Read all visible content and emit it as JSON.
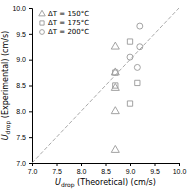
{
  "chart_data": {
    "type": "scatter",
    "title": "",
    "xlabel": "Udrop (Theoretical) (cm/s)",
    "ylabel": "Udrop (Experimental) (cm/s)",
    "xlim": [
      7,
      10
    ],
    "ylim": [
      7,
      10
    ],
    "xticks": [
      {
        "value": 7,
        "label": "7.0"
      },
      7.5,
      {
        "value": 8,
        "label": "8.0"
      },
      8.5,
      {
        "value": 9,
        "label": "9.0"
      },
      9.5,
      {
        "value": 10,
        "label": "10.0"
      }
    ],
    "yticks": [
      {
        "value": 7,
        "label": "7.0"
      },
      7.5,
      {
        "value": 8,
        "label": "8.0"
      },
      8.5,
      {
        "value": 9,
        "label": "9.0"
      },
      9.5,
      {
        "value": 10,
        "label": "10.0"
      }
    ],
    "grid": false,
    "legend": "upper left",
    "series": [
      {
        "type": "line",
        "line_style": "dashed",
        "color": "#aaaaaa",
        "x": [
          7,
          10
        ],
        "values": [
          7,
          10
        ]
      },
      {
        "type": "scatter",
        "name": "ΔT = 150°C",
        "marker": "triangle",
        "color": "#999999",
        "x": [
          8.7,
          8.7,
          8.7,
          8.7,
          8.7
        ],
        "values": [
          7.25,
          8.0,
          8.45,
          8.75,
          9.25
        ]
      },
      {
        "type": "scatter",
        "name": "ΔT = 175°C",
        "marker": "square",
        "color": "#999999",
        "x": [
          8.7,
          8.7,
          9.0,
          9.0,
          9.15
        ],
        "values": [
          8.75,
          8.5,
          8.15,
          9.35,
          8.55
        ]
      },
      {
        "type": "scatter",
        "name": "ΔT = 200°C",
        "marker": "circle",
        "color": "#999999",
        "x": [
          9.0,
          9.15,
          9.2,
          9.2
        ],
        "values": [
          9.05,
          8.85,
          9.25,
          9.65
        ]
      }
    ]
  }
}
